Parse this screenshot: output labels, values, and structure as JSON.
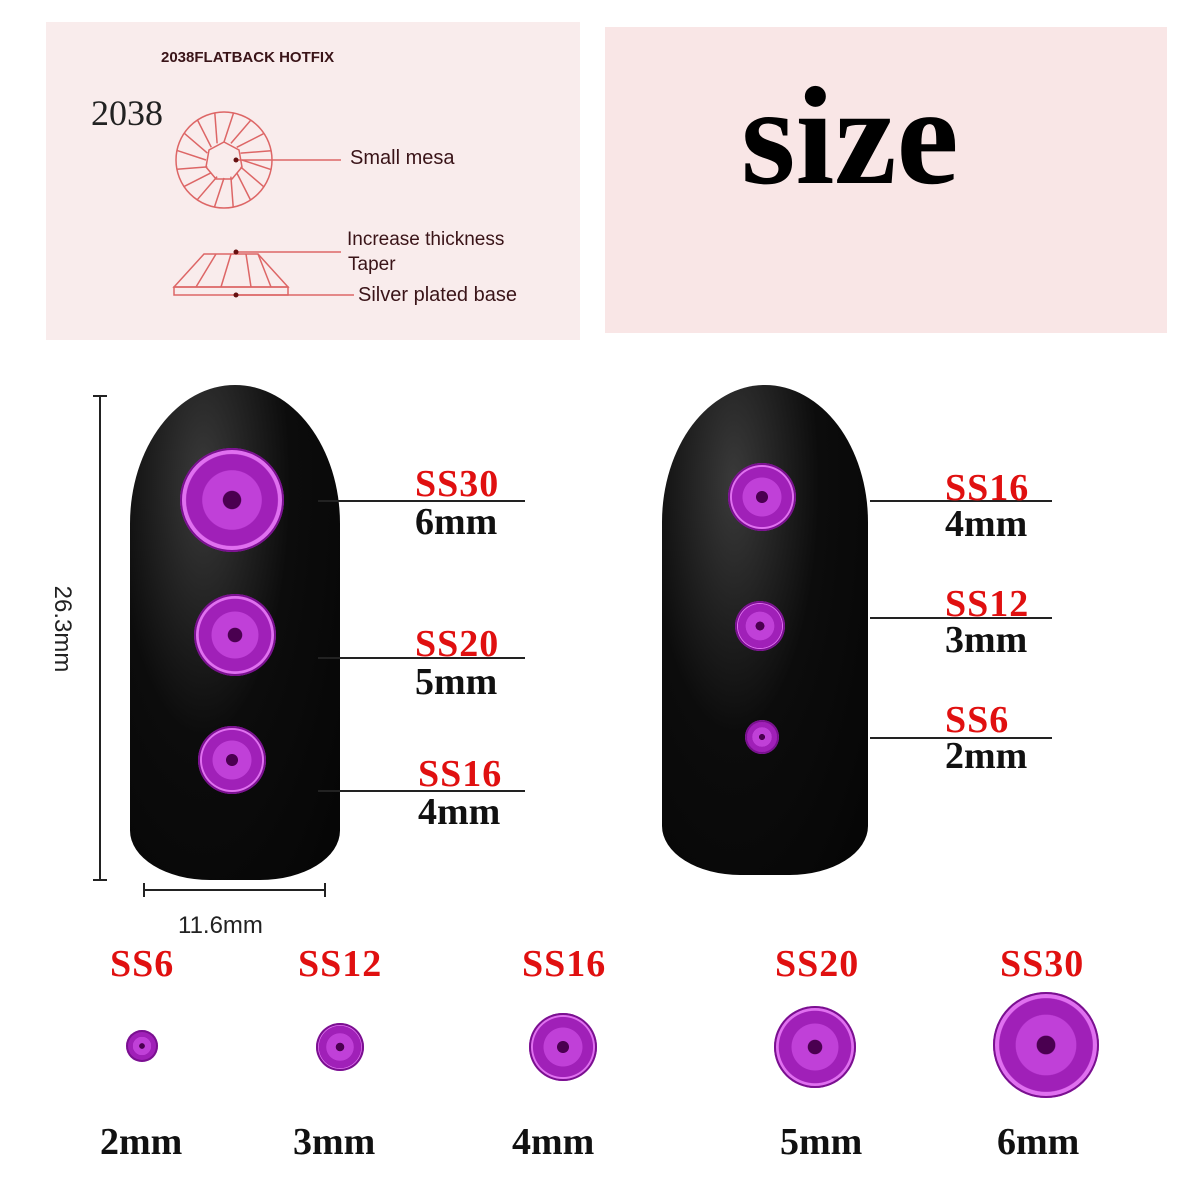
{
  "diagram": {
    "header": "2038FLATBACK HOTFIX",
    "model": "2038",
    "labels": [
      "Small mesa",
      "Increase thickness",
      "Taper",
      "Silver plated base"
    ]
  },
  "title": "size",
  "dimensions": {
    "height": "26.3mm",
    "width": "11.6mm"
  },
  "nail_left": [
    {
      "ss": "SS30",
      "mm": "6mm"
    },
    {
      "ss": "SS20",
      "mm": "5mm"
    },
    {
      "ss": "SS16",
      "mm": "4mm"
    }
  ],
  "nail_right": [
    {
      "ss": "SS16",
      "mm": "4mm"
    },
    {
      "ss": "SS12",
      "mm": "3mm"
    },
    {
      "ss": "SS6",
      "mm": "2mm"
    }
  ],
  "row": [
    {
      "ss": "SS6",
      "mm": "2mm"
    },
    {
      "ss": "SS12",
      "mm": "3mm"
    },
    {
      "ss": "SS16",
      "mm": "4mm"
    },
    {
      "ss": "SS20",
      "mm": "5mm"
    },
    {
      "ss": "SS30",
      "mm": "6mm"
    }
  ],
  "colors": {
    "label_red": "#e01010",
    "gem": "#c040d8",
    "panel": "#f9ecec"
  }
}
